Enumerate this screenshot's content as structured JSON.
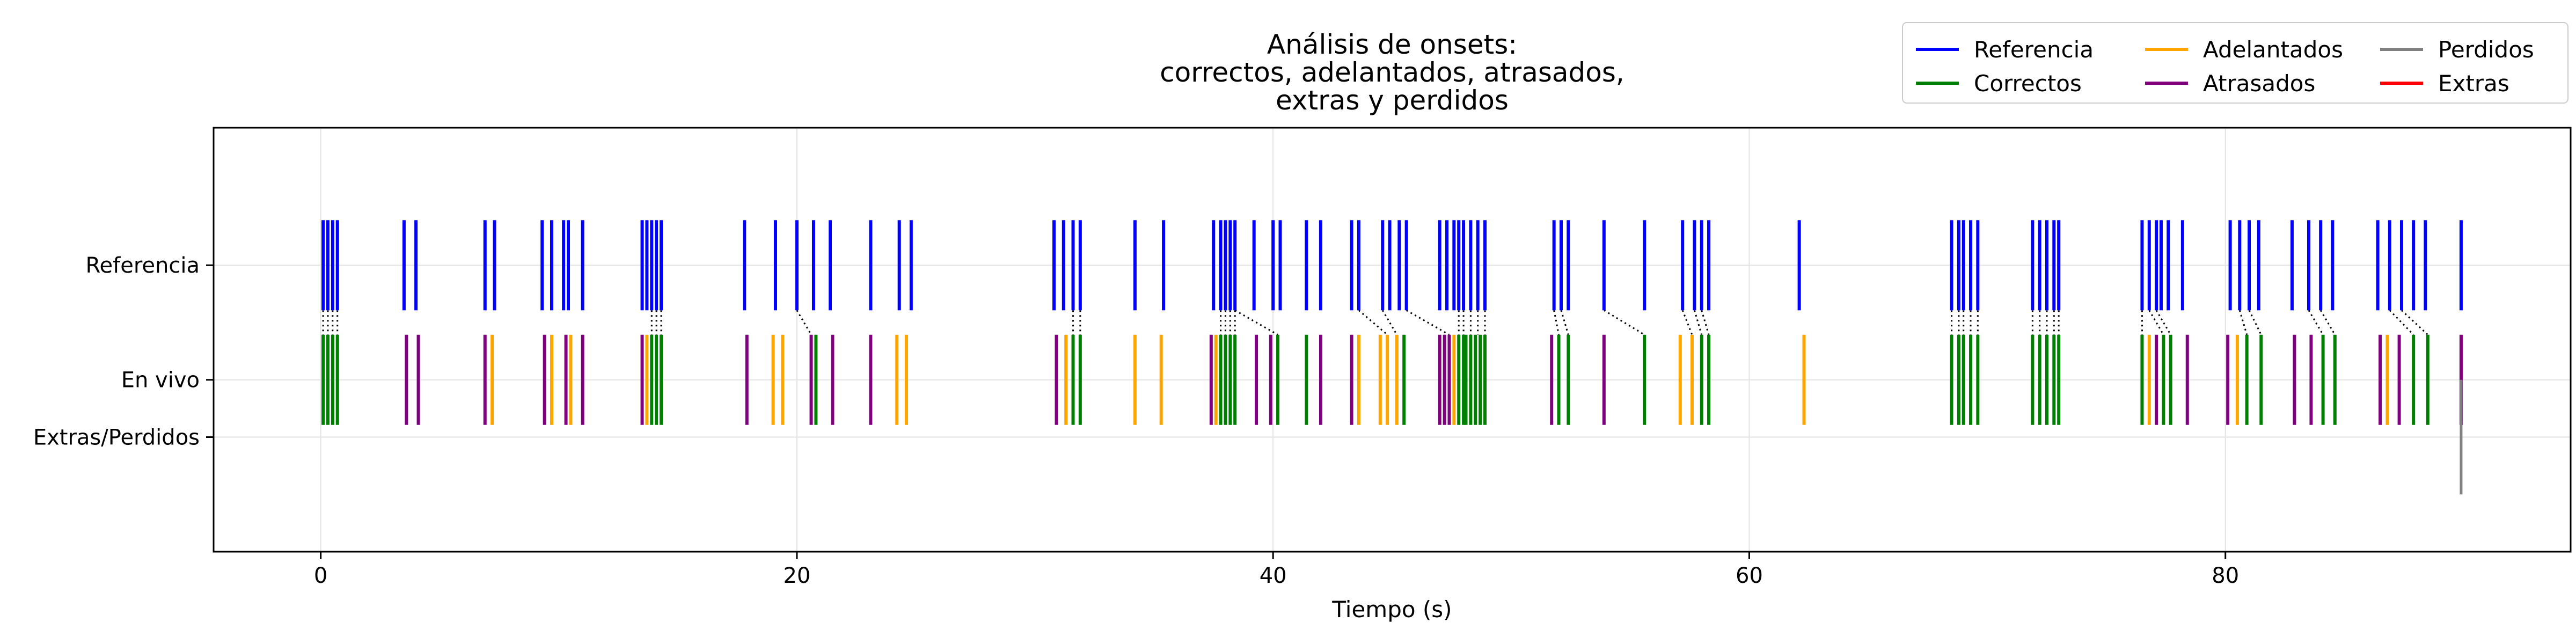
{
  "chart_data": {
    "type": "event-raster",
    "title": "Análisis de onsets:\ncorrectos, adelantados, atrasados,\nextras y perdidos",
    "xlabel": "Tiempo (s)",
    "ylabel": "",
    "xlim": [
      -4.5,
      94.5
    ],
    "ylim": [
      -2.5,
      1.2
    ],
    "x_ticks": [
      0,
      20,
      40,
      60,
      80
    ],
    "grid": true,
    "legend_placement": "top-right",
    "rows": [
      {
        "label": "Referencia",
        "y": 0
      },
      {
        "label": "En vivo",
        "y": -1
      },
      {
        "label": "Extras/Perdidos",
        "y": -1.5
      }
    ],
    "legend": [
      {
        "name": "Referencia",
        "color": "#0000ff"
      },
      {
        "name": "Correctos",
        "color": "#008000"
      },
      {
        "name": "Adelantados",
        "color": "#ffa500"
      },
      {
        "name": "Atrasados",
        "color": "#800080"
      },
      {
        "name": "Perdidos",
        "color": "#808080"
      },
      {
        "name": "Extras",
        "color": "#ff0000"
      }
    ],
    "reference_onsets": [
      0.1,
      0.3,
      0.5,
      0.7,
      3.5,
      4.0,
      6.9,
      7.3,
      9.3,
      9.7,
      10.2,
      10.4,
      11.0,
      13.5,
      13.7,
      13.9,
      14.1,
      14.3,
      17.8,
      19.1,
      20.0,
      20.7,
      21.4,
      23.1,
      24.3,
      24.8,
      30.8,
      31.2,
      31.6,
      31.9,
      34.2,
      35.4,
      37.5,
      37.8,
      38.0,
      38.2,
      38.4,
      39.2,
      40.0,
      40.3,
      41.4,
      42.0,
      43.3,
      43.6,
      44.6,
      44.9,
      45.3,
      45.6,
      47.0,
      47.3,
      47.6,
      47.8,
      48.0,
      48.3,
      48.6,
      48.9,
      51.8,
      52.1,
      52.4,
      53.9,
      55.6,
      57.2,
      57.7,
      58.0,
      58.3,
      62.1,
      68.5,
      68.8,
      69.0,
      69.3,
      69.6,
      71.9,
      72.2,
      72.5,
      72.8,
      73.0,
      76.5,
      76.8,
      77.1,
      77.3,
      77.6,
      78.2,
      80.2,
      80.6,
      81.0,
      81.4,
      82.8,
      83.5,
      84.0,
      84.5,
      86.4,
      86.9,
      87.4,
      87.9,
      88.4,
      89.9
    ],
    "live_onsets": [
      {
        "t": 0.1,
        "type": "correct"
      },
      {
        "t": 0.3,
        "type": "correct"
      },
      {
        "t": 0.5,
        "type": "correct"
      },
      {
        "t": 0.7,
        "type": "correct"
      },
      {
        "t": 3.6,
        "type": "late"
      },
      {
        "t": 4.1,
        "type": "late"
      },
      {
        "t": 6.9,
        "type": "late"
      },
      {
        "t": 7.2,
        "type": "early"
      },
      {
        "t": 9.4,
        "type": "late"
      },
      {
        "t": 9.7,
        "type": "early"
      },
      {
        "t": 10.3,
        "type": "late"
      },
      {
        "t": 10.5,
        "type": "early"
      },
      {
        "t": 11.0,
        "type": "late"
      },
      {
        "t": 13.5,
        "type": "late"
      },
      {
        "t": 13.7,
        "type": "early"
      },
      {
        "t": 13.9,
        "type": "correct"
      },
      {
        "t": 14.1,
        "type": "correct"
      },
      {
        "t": 14.3,
        "type": "correct"
      },
      {
        "t": 17.9,
        "type": "late"
      },
      {
        "t": 19.0,
        "type": "early"
      },
      {
        "t": 19.4,
        "type": "early"
      },
      {
        "t": 20.6,
        "type": "late"
      },
      {
        "t": 20.8,
        "type": "correct"
      },
      {
        "t": 21.5,
        "type": "late"
      },
      {
        "t": 23.1,
        "type": "late"
      },
      {
        "t": 24.2,
        "type": "early"
      },
      {
        "t": 24.6,
        "type": "early"
      },
      {
        "t": 30.9,
        "type": "late"
      },
      {
        "t": 31.3,
        "type": "early"
      },
      {
        "t": 31.6,
        "type": "correct"
      },
      {
        "t": 31.9,
        "type": "correct"
      },
      {
        "t": 34.2,
        "type": "early"
      },
      {
        "t": 35.3,
        "type": "early"
      },
      {
        "t": 37.4,
        "type": "late"
      },
      {
        "t": 37.6,
        "type": "early"
      },
      {
        "t": 37.8,
        "type": "correct"
      },
      {
        "t": 38.0,
        "type": "correct"
      },
      {
        "t": 38.2,
        "type": "correct"
      },
      {
        "t": 38.4,
        "type": "correct"
      },
      {
        "t": 39.3,
        "type": "late"
      },
      {
        "t": 39.9,
        "type": "late"
      },
      {
        "t": 40.2,
        "type": "correct"
      },
      {
        "t": 41.4,
        "type": "correct"
      },
      {
        "t": 42.0,
        "type": "late"
      },
      {
        "t": 43.3,
        "type": "late"
      },
      {
        "t": 43.6,
        "type": "early"
      },
      {
        "t": 44.5,
        "type": "early"
      },
      {
        "t": 44.8,
        "type": "early"
      },
      {
        "t": 45.2,
        "type": "early"
      },
      {
        "t": 45.5,
        "type": "correct"
      },
      {
        "t": 47.0,
        "type": "late"
      },
      {
        "t": 47.2,
        "type": "late"
      },
      {
        "t": 47.4,
        "type": "late"
      },
      {
        "t": 47.6,
        "type": "early"
      },
      {
        "t": 47.8,
        "type": "correct"
      },
      {
        "t": 48.0,
        "type": "correct"
      },
      {
        "t": 48.1,
        "type": "correct"
      },
      {
        "t": 48.3,
        "type": "correct"
      },
      {
        "t": 48.5,
        "type": "correct"
      },
      {
        "t": 48.7,
        "type": "correct"
      },
      {
        "t": 48.9,
        "type": "correct"
      },
      {
        "t": 51.7,
        "type": "late"
      },
      {
        "t": 52.0,
        "type": "correct"
      },
      {
        "t": 52.4,
        "type": "correct"
      },
      {
        "t": 53.9,
        "type": "late"
      },
      {
        "t": 55.6,
        "type": "correct"
      },
      {
        "t": 57.1,
        "type": "early"
      },
      {
        "t": 57.6,
        "type": "early"
      },
      {
        "t": 58.0,
        "type": "correct"
      },
      {
        "t": 58.3,
        "type": "correct"
      },
      {
        "t": 62.3,
        "type": "early"
      },
      {
        "t": 68.5,
        "type": "correct"
      },
      {
        "t": 68.8,
        "type": "correct"
      },
      {
        "t": 69.0,
        "type": "correct"
      },
      {
        "t": 69.3,
        "type": "correct"
      },
      {
        "t": 69.6,
        "type": "correct"
      },
      {
        "t": 71.9,
        "type": "correct"
      },
      {
        "t": 72.2,
        "type": "correct"
      },
      {
        "t": 72.5,
        "type": "correct"
      },
      {
        "t": 72.8,
        "type": "correct"
      },
      {
        "t": 73.0,
        "type": "correct"
      },
      {
        "t": 76.5,
        "type": "correct"
      },
      {
        "t": 76.8,
        "type": "early"
      },
      {
        "t": 77.1,
        "type": "late"
      },
      {
        "t": 77.4,
        "type": "correct"
      },
      {
        "t": 77.7,
        "type": "correct"
      },
      {
        "t": 78.4,
        "type": "late"
      },
      {
        "t": 80.1,
        "type": "late"
      },
      {
        "t": 80.5,
        "type": "early"
      },
      {
        "t": 80.9,
        "type": "correct"
      },
      {
        "t": 81.5,
        "type": "correct"
      },
      {
        "t": 82.9,
        "type": "late"
      },
      {
        "t": 83.6,
        "type": "late"
      },
      {
        "t": 84.1,
        "type": "correct"
      },
      {
        "t": 84.6,
        "type": "correct"
      },
      {
        "t": 86.5,
        "type": "late"
      },
      {
        "t": 86.8,
        "type": "early"
      },
      {
        "t": 87.3,
        "type": "late"
      },
      {
        "t": 87.9,
        "type": "correct"
      },
      {
        "t": 88.5,
        "type": "correct"
      },
      {
        "t": 89.9,
        "type": "late"
      }
    ],
    "matches": [
      [
        0.1,
        0.1
      ],
      [
        0.3,
        0.3
      ],
      [
        0.5,
        0.5
      ],
      [
        0.7,
        0.7
      ],
      [
        13.9,
        13.9
      ],
      [
        14.1,
        14.1
      ],
      [
        14.3,
        14.3
      ],
      [
        20.0,
        20.6
      ],
      [
        31.6,
        31.6
      ],
      [
        31.9,
        31.9
      ],
      [
        37.8,
        37.8
      ],
      [
        38.0,
        38.0
      ],
      [
        38.2,
        38.2
      ],
      [
        38.4,
        38.4
      ],
      [
        38.4,
        40.2
      ],
      [
        43.6,
        44.8
      ],
      [
        44.6,
        45.2
      ],
      [
        45.6,
        47.4
      ],
      [
        47.8,
        47.8
      ],
      [
        48.0,
        48.0
      ],
      [
        48.3,
        48.3
      ],
      [
        48.6,
        48.6
      ],
      [
        48.9,
        48.9
      ],
      [
        51.8,
        52.0
      ],
      [
        52.1,
        52.4
      ],
      [
        53.9,
        55.6
      ],
      [
        57.2,
        57.6
      ],
      [
        57.7,
        58.0
      ],
      [
        58.0,
        58.3
      ],
      [
        68.5,
        68.5
      ],
      [
        68.8,
        68.8
      ],
      [
        69.0,
        69.0
      ],
      [
        69.3,
        69.3
      ],
      [
        69.6,
        69.6
      ],
      [
        71.9,
        71.9
      ],
      [
        72.2,
        72.2
      ],
      [
        72.5,
        72.5
      ],
      [
        72.8,
        72.8
      ],
      [
        73.0,
        73.0
      ],
      [
        76.5,
        76.5
      ],
      [
        76.8,
        77.4
      ],
      [
        77.1,
        77.7
      ],
      [
        80.6,
        80.9
      ],
      [
        81.0,
        81.5
      ],
      [
        83.5,
        84.1
      ],
      [
        84.0,
        84.6
      ],
      [
        86.9,
        87.9
      ],
      [
        87.4,
        88.5
      ]
    ],
    "missed_onsets": [
      89.9
    ],
    "extra_onsets": []
  }
}
